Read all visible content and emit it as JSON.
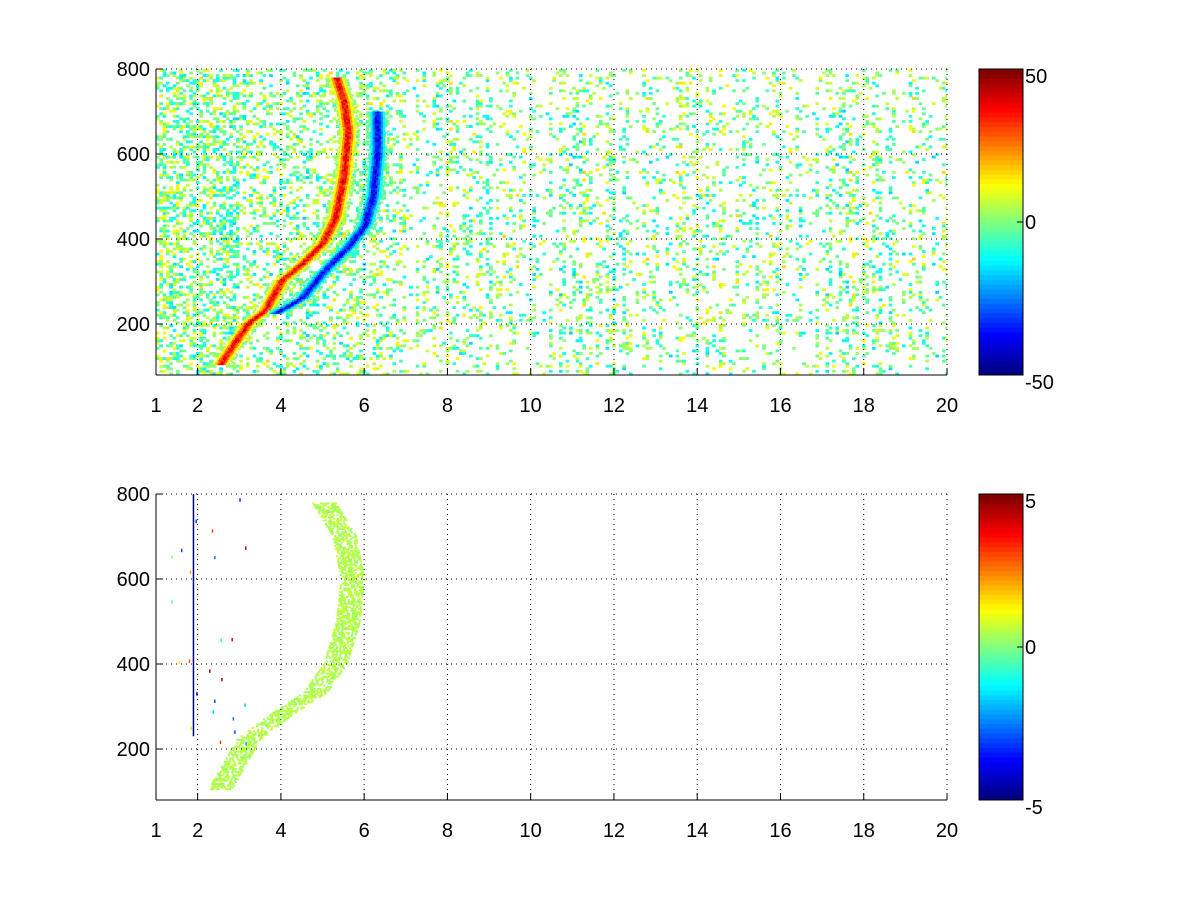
{
  "chart_data": [
    {
      "type": "heatmap",
      "title": "",
      "xlabel": "",
      "ylabel": "",
      "xlim": [
        1,
        20
      ],
      "ylim": [
        80,
        800
      ],
      "xticks": [
        1,
        2,
        4,
        6,
        8,
        10,
        12,
        14,
        16,
        18,
        20
      ],
      "yticks": [
        200,
        400,
        600,
        800
      ],
      "grid": true,
      "colormap": "jet",
      "clim": [
        -50,
        50
      ],
      "colorbar_ticks": [
        50,
        0,
        -50
      ],
      "features": [
        {
          "description": "positive ridge",
          "sign": "positive",
          "points": [
            [
              2.5,
              100
            ],
            [
              3.2,
              200
            ],
            [
              3.6,
              230
            ],
            [
              4.0,
              300
            ],
            [
              4.5,
              340
            ],
            [
              5.0,
              390
            ],
            [
              5.3,
              450
            ],
            [
              5.5,
              550
            ],
            [
              5.6,
              650
            ],
            [
              5.5,
              720
            ],
            [
              5.3,
              780
            ]
          ],
          "peak_value": 45
        },
        {
          "description": "negative ridge",
          "sign": "negative",
          "points": [
            [
              3.8,
              220
            ],
            [
              4.5,
              260
            ],
            [
              5.0,
              320
            ],
            [
              5.6,
              380
            ],
            [
              6.0,
              430
            ],
            [
              6.2,
              500
            ],
            [
              6.3,
              600
            ],
            [
              6.3,
              700
            ]
          ],
          "peak_value": -45
        },
        {
          "description": "vertical noise streaks",
          "x_range": [
            1,
            20
          ],
          "value_range": [
            -15,
            15
          ]
        }
      ]
    },
    {
      "type": "heatmap",
      "title": "",
      "xlabel": "",
      "ylabel": "",
      "xlim": [
        1,
        20
      ],
      "ylim": [
        80,
        800
      ],
      "xticks": [
        1,
        2,
        4,
        6,
        8,
        10,
        12,
        14,
        16,
        18,
        20
      ],
      "yticks": [
        200,
        400,
        600,
        800
      ],
      "grid": true,
      "colormap": "jet",
      "clim": [
        -5,
        5
      ],
      "colorbar_ticks": [
        5,
        0,
        -5
      ],
      "features": [
        {
          "description": "near-zero band",
          "value": 0.5,
          "points": [
            [
              2.5,
              100
            ],
            [
              3.2,
              220
            ],
            [
              4.0,
              280
            ],
            [
              4.8,
              330
            ],
            [
              5.3,
              400
            ],
            [
              5.6,
              500
            ],
            [
              5.7,
              600
            ],
            [
              5.5,
              700
            ],
            [
              5.0,
              780
            ]
          ]
        },
        {
          "description": "vertical line",
          "x": 1.9,
          "y_range": [
            230,
            800
          ],
          "value": -5
        }
      ]
    }
  ]
}
